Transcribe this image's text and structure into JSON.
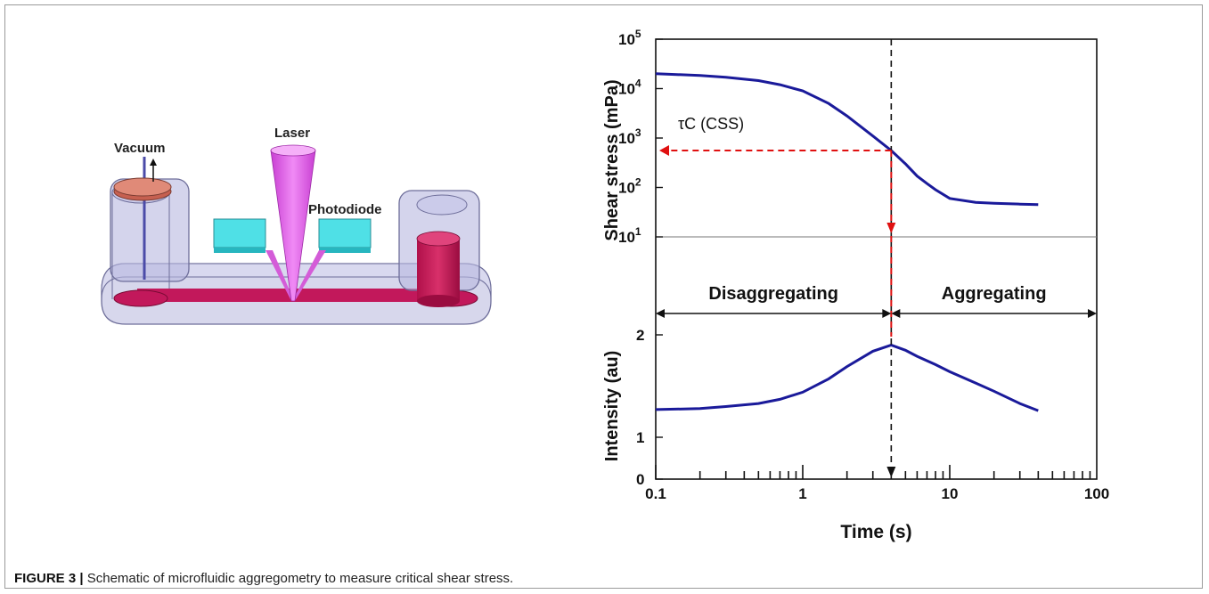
{
  "figure_label": "FIGURE 3 |",
  "caption": "Schematic of microfluidic aggregometry to measure critical shear stress.",
  "schematic": {
    "labels": {
      "vacuum": "Vacuum",
      "laser": "Laser",
      "photodiode": "Photodiode"
    }
  },
  "chart_data": [
    {
      "type": "line",
      "panel": "top",
      "ylabel": "Shear stress (mPa)",
      "y_scale": "log",
      "ylim": [
        10,
        100000
      ],
      "xlim": [
        0.1,
        100
      ],
      "x_scale": "log",
      "y_ticks": [
        "10",
        "10",
        "10",
        "10",
        "10"
      ],
      "y_tick_exponents": [
        "1",
        "2",
        "3",
        "4",
        "5"
      ],
      "series": [
        {
          "x": [
            0.1,
            0.2,
            0.3,
            0.5,
            0.7,
            1.0,
            1.5,
            2.0,
            3.0,
            4.0,
            5.0,
            6.0,
            7.0,
            8.0,
            10.0,
            15.0,
            20.0,
            30.0,
            40.0
          ],
          "y": [
            20000,
            18500,
            17000,
            14500,
            12000,
            9000,
            5000,
            2800,
            1100,
            560,
            300,
            170,
            120,
            90,
            60,
            50,
            48,
            46,
            45
          ]
        }
      ],
      "annotation": "τC (CSS)",
      "critical_point": {
        "x": 4.0,
        "y": 560
      }
    },
    {
      "type": "line",
      "panel": "bottom",
      "ylabel": "Intensity (au)",
      "xlabel": "Time (s)",
      "x_scale": "log",
      "xlim": [
        0.1,
        100
      ],
      "x_ticks": [
        "0.1",
        "1",
        "10",
        "100"
      ],
      "y_ticks": [
        "0",
        "1",
        "2"
      ],
      "series": [
        {
          "x": [
            0.1,
            0.2,
            0.3,
            0.5,
            0.7,
            1.0,
            1.5,
            2.0,
            3.0,
            4.0,
            5.0,
            6.0,
            8.0,
            10.0,
            15.0,
            20.0,
            30.0,
            40.0
          ],
          "y": [
            1.27,
            1.28,
            1.3,
            1.33,
            1.37,
            1.44,
            1.57,
            1.69,
            1.84,
            1.9,
            1.85,
            1.79,
            1.71,
            1.64,
            1.53,
            1.45,
            1.33,
            1.26
          ]
        }
      ],
      "regions": [
        "Disaggregating",
        "Aggregating"
      ],
      "critical_time": 4.0
    }
  ]
}
